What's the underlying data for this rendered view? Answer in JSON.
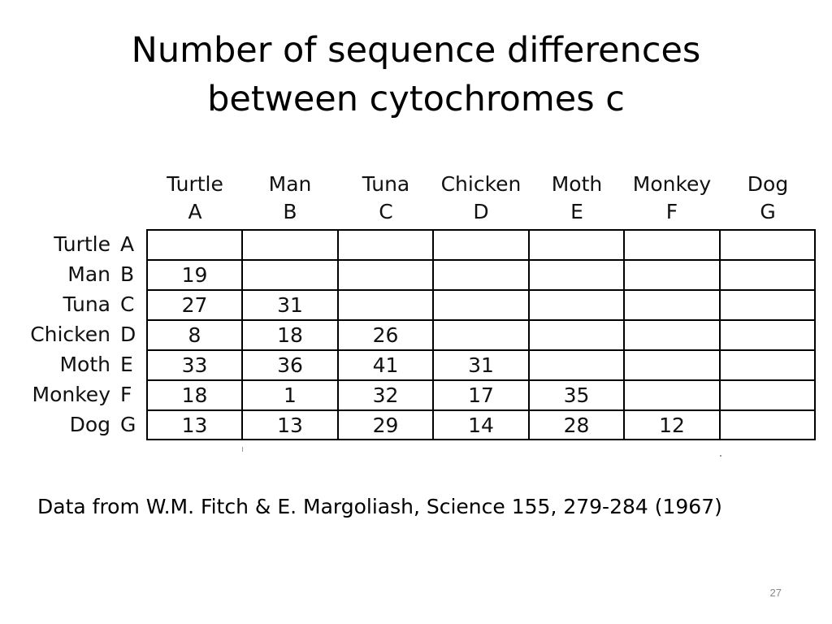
{
  "title": {
    "line1": "Number of sequence differences",
    "line2": "between cytochromes c"
  },
  "table": {
    "columns": [
      {
        "name": "Turtle",
        "letter": "A"
      },
      {
        "name": "Man",
        "letter": "B"
      },
      {
        "name": "Tuna",
        "letter": "C"
      },
      {
        "name": "Chicken",
        "letter": "D"
      },
      {
        "name": "Moth",
        "letter": "E"
      },
      {
        "name": "Monkey",
        "letter": "F"
      },
      {
        "name": "Dog",
        "letter": "G"
      }
    ],
    "rows": [
      {
        "name": "Turtle",
        "letter": "A",
        "values": [
          "",
          "",
          "",
          "",
          "",
          "",
          ""
        ]
      },
      {
        "name": "Man",
        "letter": "B",
        "values": [
          "19",
          "",
          "",
          "",
          "",
          "",
          ""
        ]
      },
      {
        "name": "Tuna",
        "letter": "C",
        "values": [
          "27",
          "31",
          "",
          "",
          "",
          "",
          ""
        ]
      },
      {
        "name": "Chicken",
        "letter": "D",
        "values": [
          "8",
          "18",
          "26",
          "",
          "",
          "",
          ""
        ]
      },
      {
        "name": "Moth",
        "letter": "E",
        "values": [
          "33",
          "36",
          "41",
          "31",
          "",
          "",
          ""
        ]
      },
      {
        "name": "Monkey",
        "letter": "F",
        "values": [
          "18",
          "1",
          "32",
          "17",
          "35",
          "",
          ""
        ]
      },
      {
        "name": "Dog",
        "letter": "G",
        "values": [
          "13",
          "13",
          "29",
          "14",
          "28",
          "12",
          ""
        ]
      }
    ]
  },
  "citation": "Data from W.M. Fitch & E. Margoliash, Science 155, 279-284 (1967)",
  "slide_number": "27"
}
